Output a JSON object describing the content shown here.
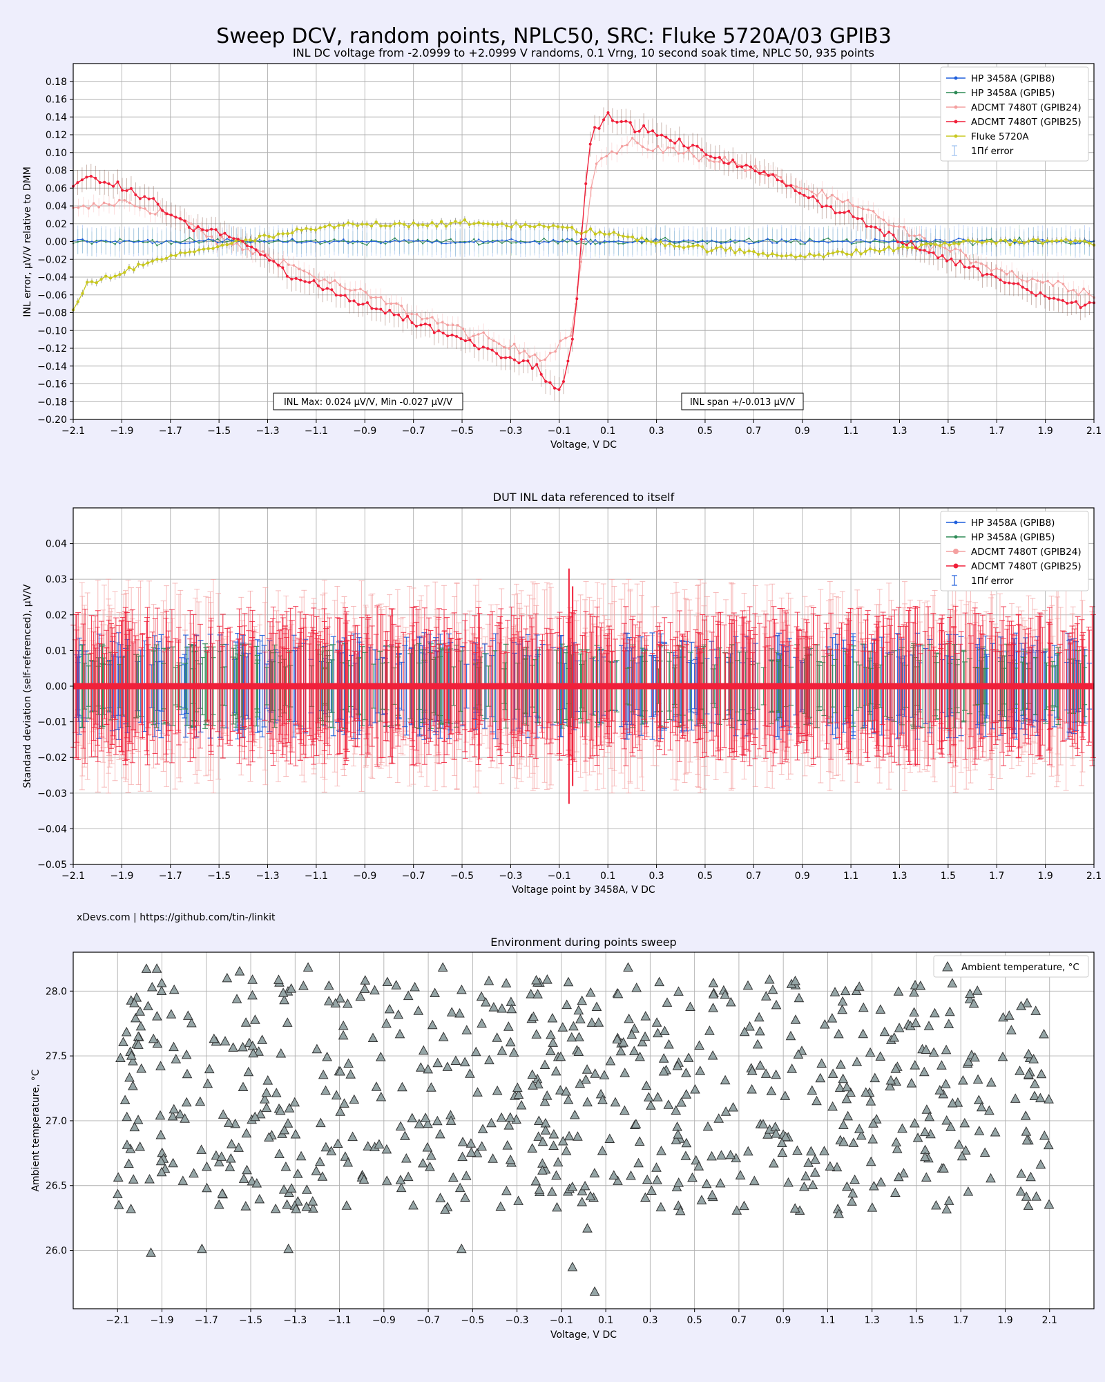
{
  "figure": {
    "suptitle": "Sweep DCV, random points, NPLC50, SRC: Fluke 5720A/03 GPIB3",
    "credit": "xDevs.com | https://github.com/tin-/linkit"
  },
  "colors": {
    "background": "#eeeefc",
    "hp8": "#1f5fdc",
    "hp5": "#2e8b57",
    "adc24": "#f4a0a0",
    "adc25": "#f0203a",
    "fluke": "#c8c820",
    "brown_err": "#8b5a4a",
    "temp_marker": "#95a5a6"
  },
  "chart_data": [
    {
      "type": "line",
      "title": "INL DC voltage from -2.0999 to +2.0999 V randoms, 0.1 Vrng, 10 second soak time, NPLC 50, 935 points",
      "xlabel": "Voltage, V DC",
      "ylabel": "INL error, μV/V relative to DMM",
      "xlim": [
        -2.1,
        2.1
      ],
      "ylim": [
        -0.2,
        0.2
      ],
      "xticks": [
        "-2.1",
        "-1.9",
        "-1.7",
        "-1.5",
        "-1.3",
        "-1.1",
        "-0.9",
        "-0.7",
        "-0.5",
        "-0.3",
        "-0.1",
        "0.1",
        "0.3",
        "0.5",
        "0.7",
        "0.9",
        "1.1",
        "1.3",
        "1.5",
        "1.7",
        "1.9",
        "2.1"
      ],
      "yticks": [
        "-0.20",
        "-0.18",
        "-0.16",
        "-0.14",
        "-0.12",
        "-0.10",
        "-0.08",
        "-0.06",
        "-0.04",
        "-0.02",
        "0.00",
        "0.02",
        "0.04",
        "0.06",
        "0.08",
        "0.10",
        "0.12",
        "0.14",
        "0.16",
        "0.18"
      ],
      "grid": true,
      "legend_position": "top-right",
      "legend": [
        "HP 3458A (GPIB8)",
        "HP 3458A (GPIB5)",
        "ADCMT 7480T (GPIB24)",
        "ADCMT 7480T (GPIB25)",
        "Fluke 5720A",
        "1Пŕ error"
      ],
      "annotations": [
        "INL Max: 0.024 μV/V, Min -0.027 μV/V",
        "INL span +/-0.013 μV/V"
      ],
      "series": [
        {
          "name": "ADCMT 7480T (GPIB25)",
          "x": [
            -2.1,
            -2.0,
            -1.9,
            -1.8,
            -1.7,
            -1.6,
            -1.5,
            -1.4,
            -1.3,
            -1.2,
            -1.1,
            -1.0,
            -0.9,
            -0.8,
            -0.7,
            -0.6,
            -0.5,
            -0.4,
            -0.3,
            -0.2,
            -0.15,
            -0.1,
            -0.08,
            -0.05,
            -0.02,
            0.0,
            0.02,
            0.05,
            0.1,
            0.2,
            0.3,
            0.4,
            0.5,
            0.6,
            0.7,
            0.8,
            0.9,
            1.0,
            1.1,
            1.2,
            1.3,
            1.4,
            1.5,
            1.6,
            1.7,
            1.8,
            1.9,
            2.0,
            2.1
          ],
          "values": [
            0.065,
            0.07,
            0.06,
            0.05,
            0.03,
            0.015,
            0.01,
            0.0,
            -0.02,
            -0.04,
            -0.05,
            -0.06,
            -0.07,
            -0.08,
            -0.09,
            -0.1,
            -0.11,
            -0.12,
            -0.13,
            -0.14,
            -0.155,
            -0.165,
            -0.15,
            -0.12,
            -0.05,
            0.04,
            0.1,
            0.13,
            0.14,
            0.13,
            0.12,
            0.11,
            0.1,
            0.09,
            0.08,
            0.07,
            0.055,
            0.04,
            0.03,
            0.015,
            0.0,
            -0.01,
            -0.02,
            -0.03,
            -0.04,
            -0.05,
            -0.06,
            -0.07,
            -0.07
          ]
        },
        {
          "name": "ADCMT 7480T (GPIB24)",
          "x": [
            -2.1,
            -1.9,
            -1.7,
            -1.5,
            -1.3,
            -1.1,
            -0.9,
            -0.7,
            -0.5,
            -0.3,
            -0.15,
            -0.05,
            0.05,
            0.2,
            0.4,
            0.6,
            0.8,
            1.0,
            1.2,
            1.4,
            1.6,
            1.8,
            2.0,
            2.1
          ],
          "values": [
            0.035,
            0.045,
            0.03,
            0.0,
            -0.015,
            -0.04,
            -0.06,
            -0.08,
            -0.1,
            -0.12,
            -0.13,
            -0.1,
            0.09,
            0.11,
            0.1,
            0.09,
            0.07,
            0.05,
            0.03,
            0.0,
            -0.02,
            -0.04,
            -0.05,
            -0.06
          ]
        },
        {
          "name": "HP 3458A (GPIB8)",
          "x": [
            -2.1,
            2.1
          ],
          "values": [
            0.0,
            0.0
          ]
        },
        {
          "name": "HP 3458A (GPIB5)",
          "x": [
            -2.1,
            2.1
          ],
          "values": [
            0.0,
            0.0
          ]
        },
        {
          "name": "Fluke 5720A",
          "x": [
            -2.1,
            -2.05,
            -1.95,
            -1.8,
            -1.6,
            -1.4,
            -1.2,
            -1.0,
            -0.8,
            -0.6,
            -0.4,
            -0.2,
            0.0,
            0.2,
            0.4,
            0.6,
            0.8,
            1.0,
            1.2,
            1.4,
            1.6,
            1.8,
            2.0,
            2.1
          ],
          "values": [
            -0.08,
            -0.05,
            -0.04,
            -0.025,
            -0.01,
            0.0,
            0.01,
            0.018,
            0.02,
            0.02,
            0.02,
            0.018,
            0.012,
            0.005,
            -0.005,
            -0.01,
            -0.015,
            -0.015,
            -0.01,
            -0.005,
            0.0,
            0.0,
            0.0,
            0.0
          ]
        }
      ]
    },
    {
      "type": "scatter",
      "title": "DUT INL data referenced to itself",
      "xlabel": "Voltage point by 3458A, V DC",
      "ylabel": "Standard deviation (self-referenced), μV/V",
      "xlim": [
        -2.1,
        2.1
      ],
      "ylim": [
        -0.05,
        0.05
      ],
      "xticks": [
        "-2.1",
        "-1.9",
        "-1.7",
        "-1.5",
        "-1.3",
        "-1.1",
        "-0.9",
        "-0.7",
        "-0.5",
        "-0.3",
        "-0.1",
        "0.1",
        "0.3",
        "0.5",
        "0.7",
        "0.9",
        "1.1",
        "1.3",
        "1.5",
        "1.7",
        "1.9",
        "2.1"
      ],
      "yticks": [
        "-0.05",
        "-0.04",
        "-0.03",
        "-0.02",
        "-0.01",
        "0.00",
        "0.01",
        "0.02",
        "0.03",
        "0.04"
      ],
      "grid": true,
      "legend_position": "top-right",
      "legend": [
        "HP 3458A (GPIB8)",
        "HP 3458A (GPIB5)",
        "ADCMT 7480T (GPIB24)",
        "ADCMT 7480T (GPIB25)",
        "1Пŕ error"
      ],
      "errorbar_range": {
        "HP 3458A (GPIB8)": [
          -0.01,
          0.01
        ],
        "HP 3458A (GPIB5)": [
          -0.008,
          0.008
        ],
        "ADCMT 7480T (GPIB24)": [
          -0.02,
          0.02
        ],
        "ADCMT 7480T (GPIB25)": [
          -0.015,
          0.015
        ]
      },
      "values": [
        0.0
      ]
    },
    {
      "type": "scatter",
      "title": "Environment during points sweep",
      "xlabel": "Voltage, V DC",
      "ylabel": "Ambient temperature, °C",
      "xlim": [
        -2.3,
        2.3
      ],
      "ylim": [
        25.55,
        28.3
      ],
      "xticks": [
        "-2.1",
        "-1.9",
        "-1.7",
        "-1.5",
        "-1.3",
        "-1.1",
        "-0.9",
        "-0.7",
        "-0.5",
        "-0.3",
        "-0.1",
        "0.1",
        "0.3",
        "0.5",
        "0.7",
        "0.9",
        "1.1",
        "1.3",
        "1.5",
        "1.7",
        "1.9",
        "2.1"
      ],
      "yticks": [
        "26.0",
        "26.5",
        "27.0",
        "27.5",
        "28.0"
      ],
      "grid": true,
      "legend_position": "top-right",
      "legend": [
        "Ambient temperature, °C"
      ],
      "value_range": [
        25.65,
        28.18
      ],
      "outliers": [
        {
          "x": -1.95,
          "y": 25.98
        },
        {
          "x": -1.72,
          "y": 26.01
        },
        {
          "x": -1.33,
          "y": 26.01
        },
        {
          "x": -0.55,
          "y": 26.01
        },
        {
          "x": -0.05,
          "y": 25.87
        },
        {
          "x": 0.05,
          "y": 25.68
        },
        {
          "x": -1.97,
          "y": 28.17
        },
        {
          "x": -1.55,
          "y": 28.15
        }
      ]
    }
  ]
}
